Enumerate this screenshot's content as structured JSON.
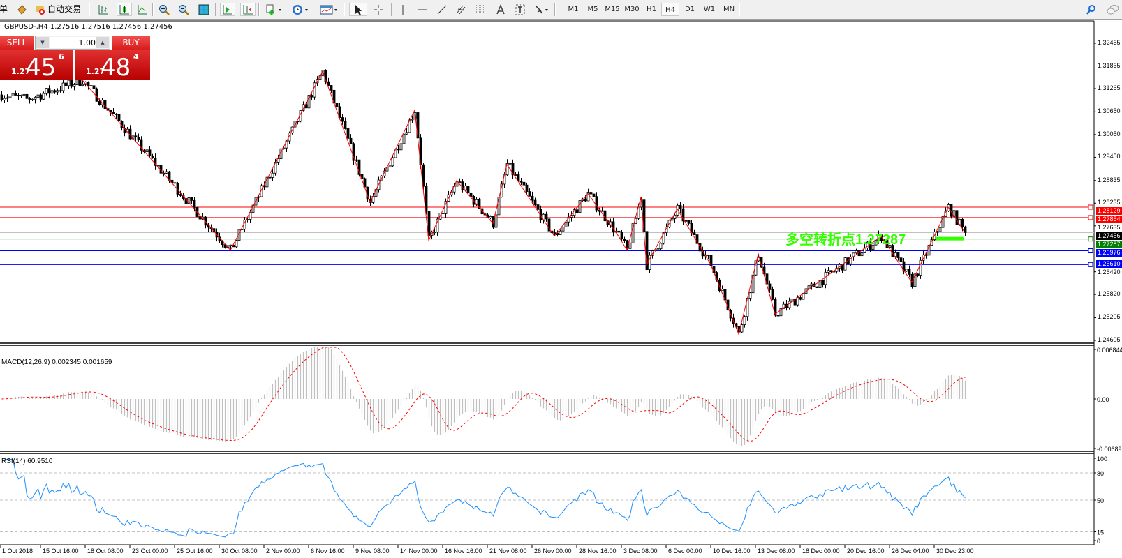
{
  "toolbar": {
    "left_cut_label": "单",
    "auto_trade_label": "自动交易",
    "timeframes": [
      "M1",
      "M5",
      "M15",
      "M30",
      "H1",
      "H4",
      "D1",
      "W1",
      "MN"
    ],
    "active_timeframe": "H4"
  },
  "chart": {
    "header": "GBPUSD-,H4  1.27516 1.27516 1.27456 1.27456",
    "symbol": "GBPUSD-",
    "timeframe": "H4",
    "ohlc": {
      "open": 1.27516,
      "high": 1.27516,
      "low": 1.27456,
      "close": 1.27456
    },
    "price_axis": {
      "max": 1.32465,
      "min": 1.24605,
      "ticks": [
        "1.32465",
        "1.31865",
        "1.31265",
        "1.30650",
        "1.30050",
        "1.29450",
        "1.28835",
        "1.28235",
        "1.27635",
        "1.26420",
        "1.25820",
        "1.25205",
        "1.24605"
      ]
    },
    "time_axis": [
      "1 Oct 2018",
      "15 Oct 16:00",
      "18 Oct 08:00",
      "23 Oct 00:00",
      "25 Oct 16:00",
      "30 Oct 08:00",
      "2 Nov 00:00",
      "6 Nov 16:00",
      "9 Nov 08:00",
      "14 Nov 00:00",
      "16 Nov 16:00",
      "21 Nov 08:00",
      "26 Nov 00:00",
      "28 Nov 16:00",
      "3 Dec 08:00",
      "6 Dec 00:00",
      "10 Dec 16:00",
      "13 Dec 08:00",
      "18 Dec 00:00",
      "20 Dec 16:00",
      "26 Dec 04:00",
      "30 Dec 23:00"
    ],
    "horizontal_lines": [
      {
        "price": "1.28129",
        "color": "#ff0000"
      },
      {
        "price": "1.27854",
        "color": "#ff0000"
      },
      {
        "price": "1.27287",
        "color": "#008000"
      },
      {
        "price": "1.26976",
        "color": "#0000ff"
      },
      {
        "price": "1.26610",
        "color": "#0000ff"
      }
    ],
    "bid_line": {
      "price": "1.27456",
      "color": "#000000",
      "line_color": "#c0c0c0"
    },
    "annotation": {
      "text": "多空转折点1.27287",
      "color": "#33ff00"
    },
    "zigzag_color": "#ff0000",
    "pivots": [
      [
        0,
        1.311
      ],
      [
        9,
        1.3098
      ],
      [
        29,
        1.3149
      ],
      [
        82,
        1.2699
      ],
      [
        115,
        1.3172
      ],
      [
        132,
        1.2826
      ],
      [
        148,
        1.307
      ],
      [
        153,
        1.2725
      ],
      [
        163,
        1.2883
      ],
      [
        176,
        1.277
      ],
      [
        181,
        1.2926
      ],
      [
        198,
        1.2736
      ],
      [
        210,
        1.2849
      ],
      [
        221,
        1.2736
      ],
      [
        224,
        1.2699
      ],
      [
        229,
        1.284
      ],
      [
        231,
        1.2661
      ],
      [
        242,
        1.2808
      ],
      [
        254,
        1.2661
      ],
      [
        264,
        1.2477
      ],
      [
        271,
        1.2689
      ],
      [
        277,
        1.253
      ],
      [
        315,
        1.2736
      ],
      [
        326,
        1.2614
      ],
      [
        339,
        1.2813
      ],
      [
        345,
        1.27456
      ]
    ]
  },
  "trade_panel": {
    "sell_label": "SELL",
    "buy_label": "BUY",
    "lot": "1.00",
    "sell_price": {
      "big": "1.27",
      "main": "45",
      "sup": "6"
    },
    "buy_price": {
      "big": "1.27",
      "main": "48",
      "sup": "4"
    }
  },
  "macd": {
    "label": "MACD(12,26,9) 0.002345 0.001659",
    "ticks": [
      "0.006844",
      "0.00",
      "-0.00689"
    ],
    "max": 0.006844,
    "min": -0.00689,
    "histogram_color": "#c0c0c0",
    "signal_color": "#ff0000"
  },
  "rsi": {
    "label": "RSI(14) 60.9510",
    "ticks": [
      "100",
      "80",
      "50",
      "15",
      "0"
    ],
    "levels": [
      80,
      50,
      15
    ],
    "line_color": "#1e90ff"
  }
}
